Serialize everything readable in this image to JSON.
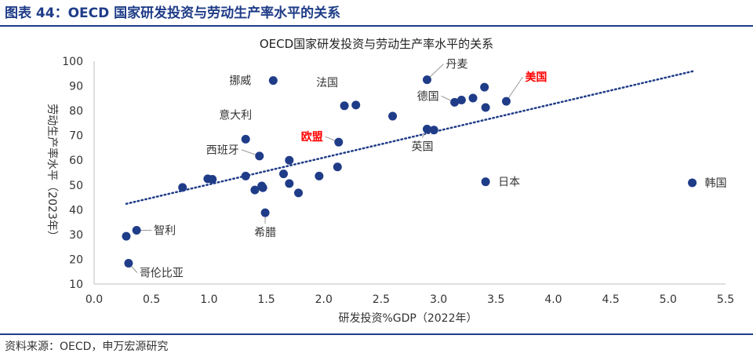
{
  "figure_title": "图表 44：OECD 国家研发投资与劳动生产率水平的关系",
  "source_note": "资料来源：OECD，申万宏源研究",
  "colors": {
    "brand": "#1f3c88",
    "point": "#1f3c88",
    "highlight": "#ff0000",
    "trend": "#1f3c88"
  },
  "chart_data": {
    "type": "scatter",
    "title": "OECD国家研发投资与劳动生产率水平的关系",
    "xlabel": "研发投资%GDP（2022年）",
    "ylabel": "劳动生产率水平（2023年）",
    "xlim": [
      0,
      5.5
    ],
    "ylim": [
      10,
      100
    ],
    "xticks": [
      "0.0",
      "0.5",
      "1.0",
      "1.5",
      "2.0",
      "2.5",
      "3.0",
      "3.5",
      "4.0",
      "4.5",
      "5.0",
      "5.5"
    ],
    "yticks": [
      "10",
      "20",
      "30",
      "40",
      "50",
      "60",
      "70",
      "80",
      "90",
      "100"
    ],
    "grid": false,
    "trendline": {
      "style": "dotted",
      "x": [
        0.28,
        5.22
      ],
      "y": [
        42.4,
        96.0
      ]
    },
    "points": [
      {
        "x": 1.56,
        "y": 92.2,
        "label": "挪威"
      },
      {
        "x": 2.18,
        "y": 82.0,
        "label": "法国"
      },
      {
        "x": 2.28,
        "y": 82.3
      },
      {
        "x": 2.6,
        "y": 77.8
      },
      {
        "x": 2.9,
        "y": 92.5,
        "label": "丹麦"
      },
      {
        "x": 3.14,
        "y": 83.4,
        "label": "德国"
      },
      {
        "x": 3.2,
        "y": 84.3
      },
      {
        "x": 3.3,
        "y": 85.1
      },
      {
        "x": 3.4,
        "y": 89.5
      },
      {
        "x": 3.41,
        "y": 81.3
      },
      {
        "x": 3.59,
        "y": 83.8,
        "label": "美国",
        "highlight": true
      },
      {
        "x": 1.32,
        "y": 68.5,
        "label": "意大利"
      },
      {
        "x": 1.44,
        "y": 61.7,
        "label": "西班牙"
      },
      {
        "x": 2.13,
        "y": 67.3,
        "label": "欧盟",
        "highlight": true
      },
      {
        "x": 2.9,
        "y": 72.6,
        "label": "英国"
      },
      {
        "x": 2.96,
        "y": 72.2
      },
      {
        "x": 1.7,
        "y": 60.0
      },
      {
        "x": 2.12,
        "y": 57.3
      },
      {
        "x": 1.65,
        "y": 54.5
      },
      {
        "x": 1.32,
        "y": 53.6
      },
      {
        "x": 1.96,
        "y": 53.6
      },
      {
        "x": 1.7,
        "y": 50.6
      },
      {
        "x": 1.46,
        "y": 49.6
      },
      {
        "x": 1.47,
        "y": 48.9
      },
      {
        "x": 1.4,
        "y": 48.0
      },
      {
        "x": 1.78,
        "y": 46.8
      },
      {
        "x": 0.99,
        "y": 52.5
      },
      {
        "x": 1.03,
        "y": 52.3
      },
      {
        "x": 0.77,
        "y": 49.0
      },
      {
        "x": 3.41,
        "y": 51.3,
        "label": "日本"
      },
      {
        "x": 5.21,
        "y": 50.9,
        "label": "韩国"
      },
      {
        "x": 1.49,
        "y": 38.8,
        "label": "希腊"
      },
      {
        "x": 0.37,
        "y": 31.7,
        "label": "智利"
      },
      {
        "x": 0.28,
        "y": 29.3
      },
      {
        "x": 0.3,
        "y": 18.4,
        "label": "哥伦比亚"
      }
    ]
  }
}
